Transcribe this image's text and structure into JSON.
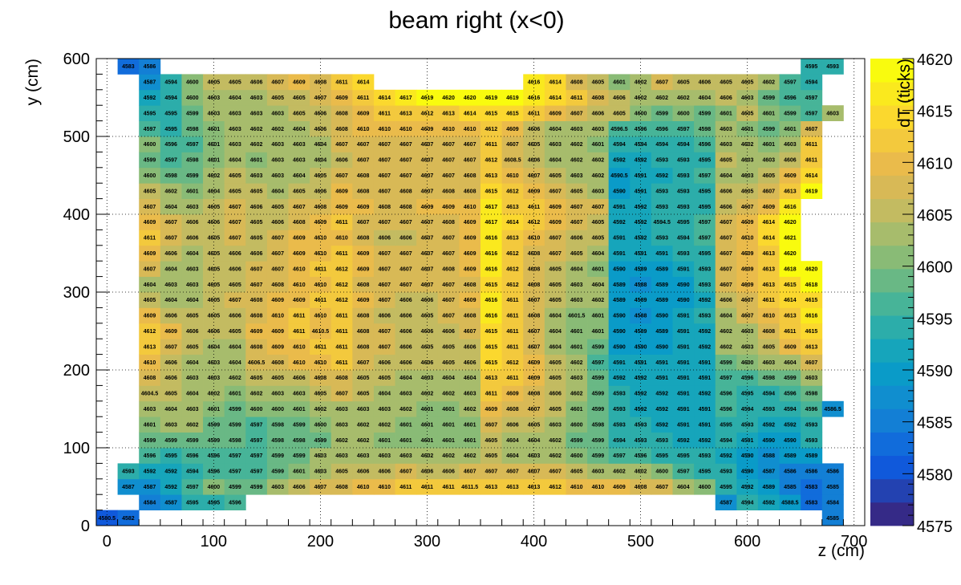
{
  "chart_data": {
    "type": "heatmap",
    "title": "beam right (x<0)",
    "xlabel": "z (cm)",
    "ylabel": "y (cm)",
    "zlabel": "dT (ticks)",
    "xlim": [
      -10,
      710
    ],
    "ylim": [
      0,
      600
    ],
    "zlim": [
      4575,
      4620
    ],
    "x_ticks": [
      0,
      100,
      200,
      300,
      400,
      500,
      600,
      700
    ],
    "y_ticks": [
      0,
      100,
      200,
      300,
      400,
      500,
      600
    ],
    "z_ticks": [
      4575,
      4580,
      4585,
      4590,
      4595,
      4600,
      4605,
      4610,
      4615,
      4620
    ],
    "x_bin_edges": [
      -10,
      10,
      30,
      50,
      70,
      90,
      110,
      130,
      150,
      170,
      190,
      210,
      230,
      250,
      270,
      290,
      310,
      330,
      350,
      370,
      390,
      410,
      430,
      450,
      470,
      490,
      510,
      530,
      550,
      570,
      590,
      610,
      630,
      650,
      670,
      690
    ],
    "y_bin_edges": [
      0,
      20,
      40,
      60,
      80,
      100,
      120,
      140,
      160,
      180,
      200,
      220,
      240,
      260,
      280,
      300,
      320,
      340,
      360,
      380,
      400,
      420,
      440,
      460,
      480,
      500,
      520,
      540,
      560,
      580,
      600
    ],
    "rows_bottom_to_top": [
      [
        4580.5,
        4582,
        null,
        null,
        null,
        null,
        null,
        null,
        null,
        null,
        null,
        null,
        null,
        null,
        null,
        null,
        null,
        null,
        null,
        null,
        null,
        null,
        null,
        null,
        null,
        null,
        null,
        null,
        null,
        null,
        null,
        null,
        null,
        null,
        4585
      ],
      [
        null,
        null,
        4584,
        4587,
        4595,
        4595,
        4596,
        null,
        null,
        null,
        null,
        null,
        null,
        null,
        null,
        null,
        null,
        null,
        null,
        null,
        null,
        null,
        null,
        null,
        null,
        null,
        null,
        null,
        null,
        4587,
        4594,
        4592,
        4588.5,
        4583,
        4584
      ],
      [
        null,
        4587,
        4587,
        4592,
        4597,
        4600,
        4599,
        4599,
        4603,
        4606,
        4607,
        4608,
        4610,
        4610,
        4611,
        4611,
        4611,
        4611.5,
        4613,
        4613,
        4613,
        4612,
        4610,
        4610,
        4609,
        4608,
        4607,
        4604,
        4600,
        4595,
        4592,
        4589,
        4585,
        4583,
        4585
      ],
      [
        null,
        4593,
        4592,
        4592,
        4594,
        4596,
        4597,
        4597,
        4599,
        4601,
        4603,
        4605,
        4606,
        4606,
        4607,
        4606,
        4606,
        4607,
        4607,
        4607,
        4607,
        4607,
        4605,
        4603,
        4602,
        4602,
        4600,
        4597,
        4595,
        4593,
        4590,
        4587,
        4586,
        4586,
        4586
      ],
      [
        null,
        null,
        4596,
        4595,
        4596,
        4596,
        4597,
        4597,
        4599,
        4599,
        4603,
        4603,
        4603,
        4603,
        4603,
        4602,
        4602,
        4602,
        4605,
        4604,
        4603,
        4602,
        4600,
        4599,
        4597,
        4596,
        4595,
        4595,
        4593,
        4592,
        4590,
        4588,
        4589,
        4589,
        null
      ],
      [
        null,
        null,
        4599,
        4599,
        4599,
        4599,
        4598,
        4597,
        4598,
        4598,
        4599,
        4602,
        4602,
        4601,
        4601,
        4601,
        4601,
        4601,
        4605,
        4604,
        4604,
        4602,
        4599,
        4599,
        4594,
        4593,
        4593,
        4592,
        4592,
        4594,
        4591,
        4590,
        4590,
        4593,
        null
      ],
      [
        null,
        null,
        4601,
        4603,
        4602,
        4599,
        4599,
        4597,
        4598,
        4599,
        4600,
        4603,
        4602,
        4602,
        4601,
        4601,
        4601,
        4601,
        4607,
        4606,
        4605,
        4603,
        4600,
        4598,
        4593,
        4593,
        4592,
        4591,
        4591,
        4595,
        4593,
        4592,
        4592,
        4593,
        null
      ],
      [
        null,
        null,
        4603,
        4604,
        4603,
        4601,
        4599,
        4600,
        4600,
        4601,
        4602,
        4603,
        4603,
        4603,
        4602,
        4601,
        4601,
        4602,
        4609,
        4608,
        4607,
        4605,
        4601,
        4599,
        4593,
        4592,
        4592,
        4591,
        4591,
        4596,
        4594,
        4593,
        4594,
        4596,
        4586.5
      ],
      [
        null,
        null,
        4604.5,
        4605,
        4604,
        4602,
        4601,
        4602,
        4603,
        4603,
        4605,
        4607,
        4605,
        4604,
        4603,
        4602,
        4602,
        4603,
        4611,
        4609,
        4608,
        4606,
        4602,
        4599,
        4593,
        4592,
        4592,
        4591,
        4592,
        4596,
        4595,
        4594,
        4596,
        4598,
        null
      ],
      [
        null,
        null,
        4608,
        4606,
        4603,
        4603,
        4602,
        4605,
        4605,
        4606,
        4608,
        4608,
        4605,
        4605,
        4604,
        4603,
        4604,
        4604,
        4613,
        4611,
        4609,
        4605,
        4603,
        4599,
        4592,
        4592,
        4591,
        4591,
        4591,
        4597,
        4596,
        4598,
        4599,
        4603,
        null
      ],
      [
        null,
        null,
        4610,
        4606,
        4604,
        4603,
        4604,
        4606.5,
        4608,
        4610,
        4610,
        4611,
        4607,
        4606,
        4606,
        4606,
        4605,
        4606,
        4615,
        4612,
        4609,
        4605,
        4602,
        4597,
        4591,
        4591,
        4591,
        4591,
        4591,
        4599,
        4600,
        4603,
        4604,
        4607,
        null
      ],
      [
        null,
        null,
        4613,
        4607,
        4605,
        4604,
        4604,
        4608,
        4609,
        4610,
        4611,
        4611,
        4608,
        4607,
        4606,
        4605,
        4605,
        4606,
        4615,
        4611,
        4607,
        4604,
        4601,
        4599,
        4590,
        4590,
        4590,
        4591,
        4592,
        4602,
        4603,
        4605,
        4609,
        4613,
        null
      ],
      [
        null,
        null,
        4612,
        4609,
        4606,
        4606,
        4605,
        4609,
        4609,
        4611,
        4610.5,
        4611,
        4608,
        4607,
        4606,
        4606,
        4606,
        4607,
        4615,
        4611,
        4607,
        4604,
        4601,
        4601,
        4590,
        4589,
        4589,
        4591,
        4592,
        4602,
        4603,
        4608,
        4611,
        4615,
        null
      ],
      [
        null,
        null,
        4609,
        4606,
        4605,
        4605,
        4606,
        4608,
        4610,
        4611,
        4610,
        4611,
        4608,
        4606,
        4606,
        4605,
        4607,
        4608,
        4616,
        4611,
        4608,
        4604,
        4601.5,
        4601,
        4590,
        4588,
        4590,
        4591,
        4593,
        4604,
        4607,
        4610,
        4613,
        4616,
        null
      ],
      [
        null,
        null,
        4605,
        4604,
        4604,
        4605,
        4607,
        4608,
        4609,
        4609,
        4611,
        4612,
        4609,
        4607,
        4606,
        4606,
        4607,
        4609,
        4616,
        4611,
        4607,
        4605,
        4603,
        4602,
        4589,
        4589,
        4589,
        4590,
        4592,
        4606,
        4607,
        4611,
        4614,
        4615,
        null
      ],
      [
        null,
        null,
        4604,
        4603,
        4603,
        4605,
        4605,
        4607,
        4608,
        4610,
        4610,
        4612,
        4608,
        4607,
        4607,
        4607,
        4607,
        4608,
        4615,
        4612,
        4608,
        4605,
        4603,
        4604,
        4589,
        4588,
        4589,
        4590,
        4593,
        4607,
        4609,
        4613,
        4615,
        4618,
        null
      ],
      [
        null,
        null,
        4607,
        4604,
        4603,
        4605,
        4606,
        4607,
        4607,
        4610,
        4611,
        4612,
        4609,
        4607,
        4607,
        4607,
        4608,
        4609,
        4616,
        4612,
        4608,
        4605,
        4604,
        4601,
        4590,
        4589,
        4589,
        4591,
        4593,
        4607,
        4609,
        4613,
        4618,
        4620,
        null
      ],
      [
        null,
        null,
        4609,
        4606,
        4604,
        4605,
        4606,
        4606,
        4607,
        4609,
        4610,
        4611,
        4609,
        4607,
        4607,
        4607,
        4607,
        4609,
        4616,
        4612,
        4608,
        4607,
        4605,
        4604,
        4591,
        4591,
        4591,
        4593,
        4595,
        4607,
        4609,
        4613,
        4620,
        null,
        null
      ],
      [
        null,
        null,
        4611,
        4607,
        4606,
        4605,
        4607,
        4605,
        4607,
        4609,
        4610,
        4610,
        4608,
        4606,
        4606,
        4607,
        4607,
        4609,
        4616,
        4613,
        4610,
        4607,
        4606,
        4605,
        4591,
        4592,
        4593,
        4594,
        4597,
        4607,
        4610,
        4614,
        4621,
        null,
        null
      ],
      [
        null,
        null,
        4609,
        4607,
        4606,
        4606,
        4607,
        4605,
        4606,
        4608,
        4609,
        4611,
        4607,
        4607,
        4607,
        4607,
        4608,
        4609,
        4617,
        4614,
        4612,
        4609,
        4607,
        4605,
        4592,
        4592,
        4594.5,
        4595,
        4597,
        4607,
        4609,
        4614,
        4620,
        null,
        null
      ],
      [
        null,
        null,
        4607,
        4604,
        4603,
        4605,
        4607,
        4606,
        4605,
        4607,
        4608,
        4609,
        4609,
        4608,
        4608,
        4609,
        4609,
        4610,
        4617,
        4613,
        4611,
        4609,
        4607,
        4607,
        4591,
        4592,
        4593,
        4593,
        4595,
        4606,
        4607,
        4609,
        4616,
        null,
        null
      ],
      [
        null,
        null,
        4605,
        4602,
        4601,
        4604,
        4605,
        4605,
        4604,
        4605,
        4606,
        4609,
        4608,
        4607,
        4608,
        4607,
        4608,
        4608,
        4615,
        4612,
        4609,
        4607,
        4605,
        4603,
        4590,
        4591,
        4593,
        4593,
        4595,
        4606,
        4605,
        4607,
        4613,
        4619,
        null
      ],
      [
        null,
        null,
        4600,
        4598,
        4599,
        4602,
        4605,
        4603,
        4603,
        4604,
        4605,
        4607,
        4608,
        4607,
        4607,
        4607,
        4607,
        4608,
        4613,
        4610,
        4607,
        4605,
        4603,
        4602,
        4590.5,
        4591,
        4592,
        4593,
        4597,
        4604,
        4603,
        4605,
        4609,
        4614,
        null
      ],
      [
        null,
        null,
        4599,
        4597,
        4598,
        4601,
        4604,
        4601,
        4603,
        4603,
        4604,
        4606,
        4607,
        4607,
        4607,
        4607,
        4607,
        4607,
        4612,
        4608.5,
        4606,
        4604,
        4602,
        4602,
        4592,
        4592,
        4593,
        4593,
        4595,
        4605,
        4603,
        4603,
        4606,
        4611,
        null
      ],
      [
        null,
        null,
        4600,
        4596,
        4597,
        4601,
        4603,
        4602,
        4603,
        4603,
        4604,
        4607,
        4607,
        4607,
        4607,
        4607,
        4607,
        4607,
        4611,
        4607,
        4605,
        4603,
        4602,
        4601,
        4594,
        4594,
        4594,
        4594,
        4596,
        4603,
        4602,
        4601,
        4603,
        4611,
        null
      ],
      [
        null,
        null,
        4597,
        4595,
        4598,
        4601,
        4603,
        4602,
        4602,
        4604,
        4606,
        4608,
        4610,
        4610,
        4610,
        4609,
        4610,
        4610,
        4612,
        4609,
        4606,
        4604,
        4603,
        4603,
        4596.5,
        4596,
        4596,
        4597,
        4598,
        4603,
        4601,
        4599,
        4601,
        4607,
        null
      ],
      [
        null,
        null,
        4595,
        4595,
        4599,
        4603,
        4603,
        4603,
        4603,
        4605,
        4606,
        4608,
        4609,
        4611,
        4613,
        4612,
        4613,
        4614,
        4615,
        4615,
        4611,
        4609,
        4607,
        4606,
        4605,
        4600,
        4599,
        4600,
        4599,
        4601,
        4605,
        4601,
        4599,
        4597,
        4603
      ],
      [
        null,
        null,
        4592,
        4594,
        4600,
        4603,
        4604,
        4603,
        4605,
        4605,
        4607,
        4609,
        4611,
        4614,
        4617,
        4619,
        4620,
        4620,
        4619,
        4619,
        4616,
        4614,
        4611,
        4608,
        4606,
        4602,
        4602,
        4602,
        4604,
        4606,
        4603,
        4599,
        4596,
        4597,
        null
      ],
      [
        null,
        null,
        4587,
        4594,
        4600,
        4605,
        4605,
        4606,
        4607,
        4609,
        4608,
        4611,
        4614,
        null,
        null,
        null,
        null,
        null,
        null,
        null,
        4616,
        4614,
        4608,
        4605,
        4601,
        4602,
        4607,
        4605,
        4606,
        4605,
        4605,
        4602,
        4597,
        4594,
        null
      ],
      [
        null,
        4583,
        4586,
        null,
        null,
        null,
        null,
        null,
        null,
        null,
        null,
        null,
        null,
        null,
        null,
        null,
        null,
        null,
        null,
        null,
        null,
        null,
        null,
        null,
        null,
        null,
        null,
        null,
        null,
        null,
        null,
        null,
        null,
        4595,
        4593
      ]
    ],
    "grid": true,
    "colormap": "kBird",
    "palette": [
      "#352a87",
      "#0e5ce0",
      "#1483d4",
      "#08a0c6",
      "#35b1a3",
      "#7bbb7a",
      "#bcbc65",
      "#e8b84e",
      "#fbd630",
      "#f9fb0e"
    ]
  }
}
